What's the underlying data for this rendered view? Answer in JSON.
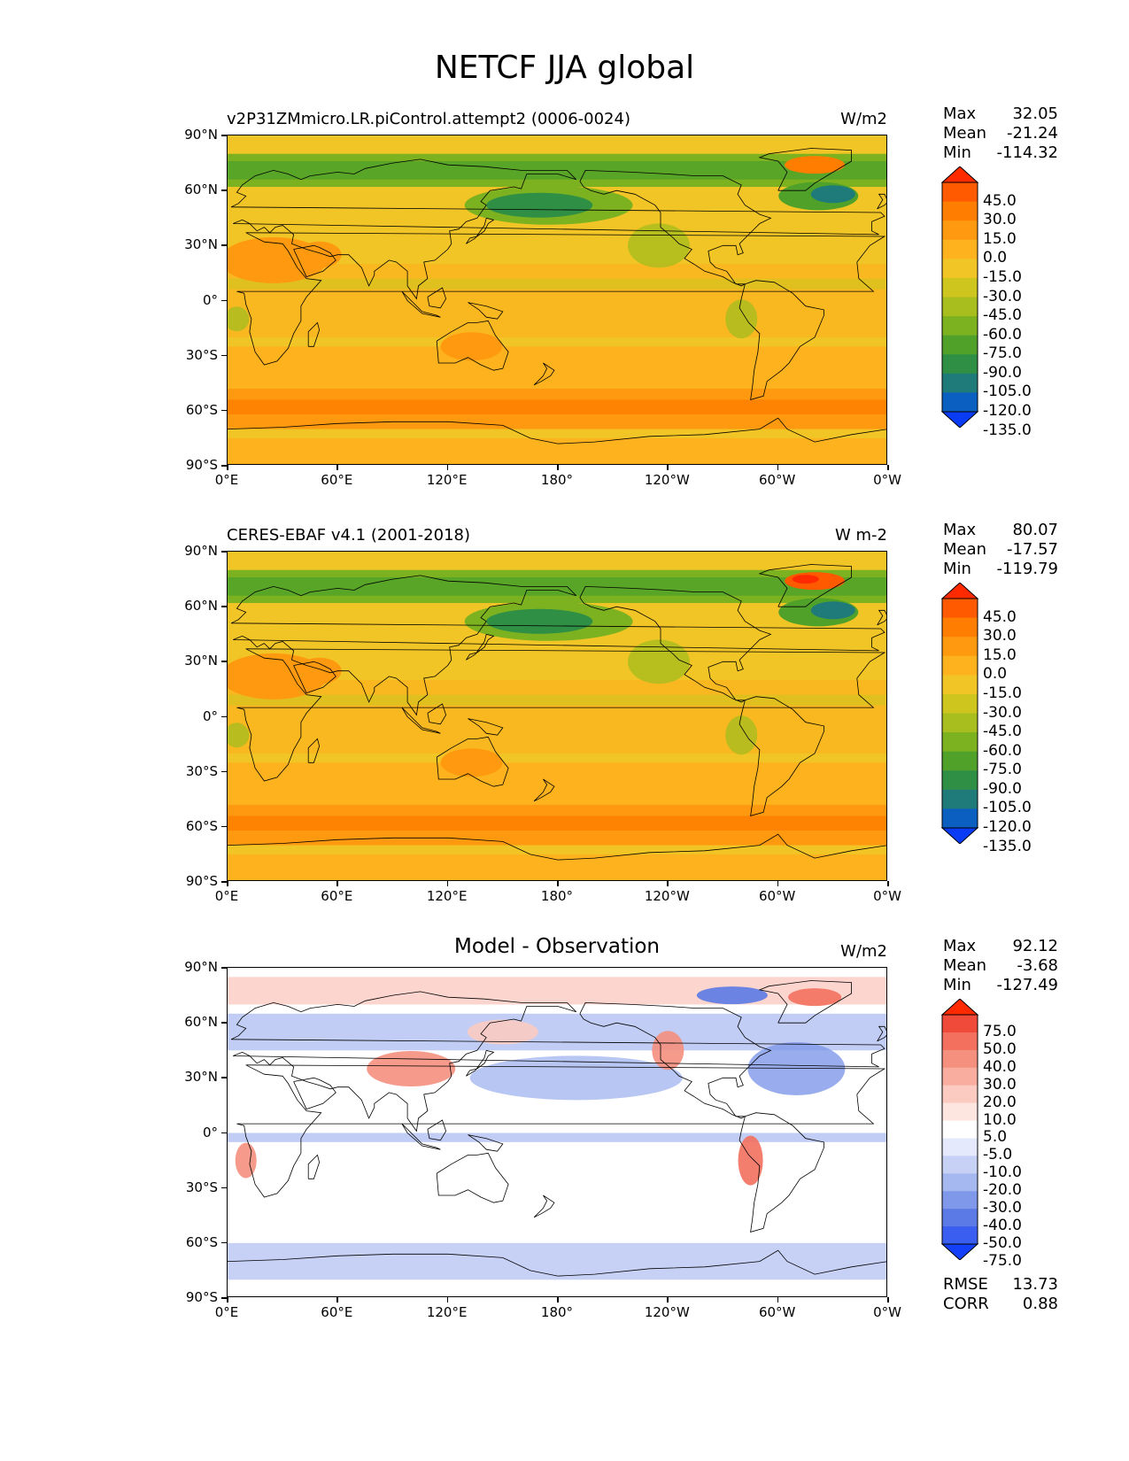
{
  "figure_title": "NETCF JJA global",
  "lat_ticks": [
    "90°N",
    "60°N",
    "30°N",
    "0°",
    "30°S",
    "60°S",
    "90°S"
  ],
  "lon_ticks": [
    "0°E",
    "60°E",
    "120°E",
    "180°",
    "120°W",
    "60°W",
    "0°W"
  ],
  "panels": [
    {
      "id": "model",
      "title": "v2P31ZMmicro.LR.piControl.attempt2 (0006-0024)",
      "title_centered": false,
      "units": "W/m2",
      "stats": {
        "max_label": "Max",
        "max": "32.05",
        "mean_label": "Mean",
        "mean": "-21.24",
        "min_label": "Min",
        "min": "-114.32"
      },
      "colorbar_levels": [
        "45.0",
        "30.0",
        "15.0",
        "0.0",
        "-15.0",
        "-30.0",
        "-45.0",
        "-60.0",
        "-75.0",
        "-90.0",
        "-105.0",
        "-120.0",
        "-135.0"
      ],
      "colorbar_colors": [
        "#ff2a00",
        "#ff5a00",
        "#ff7d00",
        "#ff9a10",
        "#fdb21e",
        "#f2c526",
        "#cfc51f",
        "#a8bd1e",
        "#7cb220",
        "#4fa12a",
        "#2f8f45",
        "#1f7a7a",
        "#0a5fc0",
        "#0a3cf5"
      ],
      "diverging": false
    },
    {
      "id": "obs",
      "title": "CERES-EBAF v4.1 (2001-2018)",
      "title_centered": false,
      "units": "W m-2",
      "stats": {
        "max_label": "Max",
        "max": "80.07",
        "mean_label": "Mean",
        "mean": "-17.57",
        "min_label": "Min",
        "min": "-119.79"
      },
      "colorbar_levels": [
        "45.0",
        "30.0",
        "15.0",
        "0.0",
        "-15.0",
        "-30.0",
        "-45.0",
        "-60.0",
        "-75.0",
        "-90.0",
        "-105.0",
        "-120.0",
        "-135.0"
      ],
      "colorbar_colors": [
        "#ff2a00",
        "#ff5a00",
        "#ff7d00",
        "#ff9a10",
        "#fdb21e",
        "#f2c526",
        "#cfc51f",
        "#a8bd1e",
        "#7cb220",
        "#4fa12a",
        "#2f8f45",
        "#1f7a7a",
        "#0a5fc0",
        "#0a3cf5"
      ],
      "diverging": false
    },
    {
      "id": "diff",
      "title": "Model - Observation",
      "title_centered": true,
      "units": "W/m2",
      "stats": {
        "max_label": "Max",
        "max": "92.12",
        "mean_label": "Mean",
        "mean": "-3.68",
        "min_label": "Min",
        "min": "-127.49"
      },
      "colorbar_levels": [
        "75.0",
        "50.0",
        "40.0",
        "30.0",
        "20.0",
        "10.0",
        "5.0",
        "-5.0",
        "-10.0",
        "-20.0",
        "-30.0",
        "-40.0",
        "-50.0",
        "-75.0"
      ],
      "colorbar_colors": [
        "#ff2a00",
        "#f04a3a",
        "#f3705e",
        "#f58f7e",
        "#f8ad9f",
        "#fbcbc2",
        "#fde5e0",
        "#ffffff",
        "#e4e9fb",
        "#c6d1f5",
        "#a6b8f0",
        "#7f98ea",
        "#5b7ae6",
        "#3a5ff0",
        "#1540fa"
      ],
      "diverging": true,
      "rmse_label": "RMSE",
      "rmse": "13.73",
      "corr_label": "CORR",
      "corr": "0.88"
    }
  ]
}
